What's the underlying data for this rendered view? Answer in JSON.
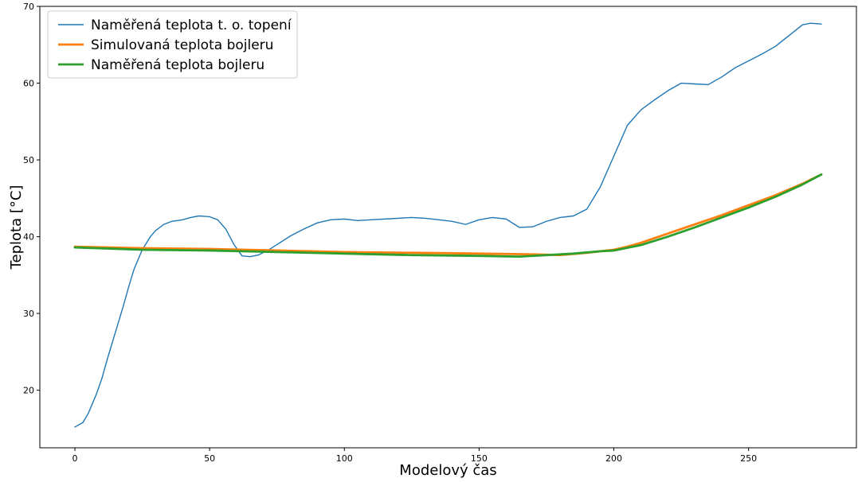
{
  "chart_data": {
    "type": "line",
    "xlabel": "Modelový čas",
    "ylabel": "Teplota [°C]",
    "xlim": [
      -13,
      290
    ],
    "ylim": [
      12.5,
      70
    ],
    "xticks": [
      0,
      50,
      100,
      150,
      200,
      250
    ],
    "yticks": [
      20,
      30,
      40,
      50,
      60,
      70
    ],
    "grid": false,
    "legend_position": "top-left",
    "series": [
      {
        "name": "Naměřená teplota t. o. topení",
        "color": "#1f77b4",
        "x": [
          0,
          3,
          5,
          8,
          10,
          12,
          15,
          18,
          20,
          22,
          25,
          28,
          30,
          33,
          36,
          40,
          43,
          46,
          50,
          53,
          56,
          59,
          62,
          65,
          68,
          72,
          76,
          80,
          85,
          90,
          95,
          100,
          105,
          110,
          115,
          120,
          125,
          130,
          135,
          140,
          145,
          150,
          155,
          160,
          165,
          170,
          175,
          180,
          185,
          190,
          195,
          200,
          205,
          210,
          215,
          220,
          225,
          230,
          235,
          240,
          245,
          250,
          255,
          260,
          265,
          270,
          273,
          277
        ],
        "y": [
          15.2,
          15.8,
          17.0,
          19.5,
          21.5,
          24.0,
          27.5,
          31.0,
          33.5,
          35.8,
          38.3,
          40.0,
          40.8,
          41.6,
          42.0,
          42.2,
          42.5,
          42.7,
          42.6,
          42.2,
          41.0,
          39.0,
          37.5,
          37.4,
          37.6,
          38.3,
          39.2,
          40.1,
          41.0,
          41.8,
          42.2,
          42.3,
          42.1,
          42.2,
          42.3,
          42.4,
          42.5,
          42.4,
          42.2,
          42.0,
          41.6,
          42.2,
          42.5,
          42.3,
          41.2,
          41.3,
          42.0,
          42.5,
          42.7,
          43.6,
          46.5,
          50.5,
          54.5,
          56.5,
          57.8,
          59.0,
          60.0,
          59.9,
          59.8,
          60.8,
          62.0,
          62.9,
          63.8,
          64.8,
          66.2,
          67.6,
          67.8,
          67.7
        ]
      },
      {
        "name": "Simulovaná teplota bojleru",
        "color": "#ff7f0e",
        "x": [
          0,
          25,
          50,
          75,
          100,
          125,
          150,
          170,
          180,
          190,
          200,
          205,
          210,
          220,
          230,
          240,
          250,
          260,
          270,
          277
        ],
        "y": [
          38.7,
          38.5,
          38.4,
          38.2,
          38.0,
          37.9,
          37.8,
          37.7,
          37.6,
          37.9,
          38.3,
          38.7,
          39.2,
          40.4,
          41.6,
          42.8,
          44.1,
          45.4,
          46.9,
          48.1
        ]
      },
      {
        "name": "Naměřená teplota bojleru",
        "color": "#2ca02c",
        "x": [
          0,
          25,
          50,
          75,
          100,
          125,
          150,
          165,
          175,
          185,
          195,
          200,
          210,
          220,
          230,
          240,
          250,
          260,
          270,
          277
        ],
        "y": [
          38.6,
          38.3,
          38.2,
          38.0,
          37.8,
          37.6,
          37.5,
          37.4,
          37.6,
          37.8,
          38.1,
          38.2,
          38.9,
          40.0,
          41.2,
          42.5,
          43.8,
          45.2,
          46.8,
          48.1
        ]
      }
    ]
  }
}
